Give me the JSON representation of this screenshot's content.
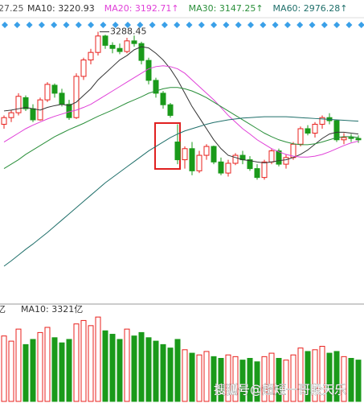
{
  "chart_data": {
    "type": "candlestick",
    "truncated_label": "27.25",
    "annotation": "3288.45",
    "watermark": "搜狐号@超短一哥段天乐",
    "ylim": [
      2680,
      3333
    ],
    "up_color": "#e8201c",
    "down_color": "#1a9a1a",
    "open": [
      3080,
      3095,
      3106,
      3140,
      3115,
      3090,
      3135,
      3168,
      3150,
      3125,
      3095,
      3188,
      3225,
      3242,
      3279,
      3258,
      3251,
      3244,
      3268,
      3262,
      3224,
      3179,
      3150,
      3124,
      3040,
      3000,
      3025,
      2975,
      3010,
      3030,
      2995,
      2970,
      2992,
      3010,
      3000,
      2980,
      2960,
      2995,
      3020,
      2990,
      3005,
      3035,
      3070,
      3060,
      3080,
      3095,
      3088,
      3045,
      3050,
      3048
    ],
    "high": [
      3100,
      3112,
      3150,
      3145,
      3125,
      3140,
      3175,
      3172,
      3160,
      3135,
      3195,
      3230,
      3250,
      3288.45,
      3282,
      3265,
      3262,
      3275,
      3280,
      3266,
      3230,
      3185,
      3155,
      3128,
      3080,
      3030,
      3040,
      3020,
      3035,
      3032,
      3005,
      3000,
      3015,
      3020,
      3008,
      2990,
      3000,
      3025,
      3025,
      3012,
      3040,
      3075,
      3078,
      3085,
      3100,
      3105,
      3090,
      3060,
      3058,
      3055
    ],
    "low": [
      3070,
      3085,
      3100,
      3110,
      3085,
      3088,
      3130,
      3140,
      3120,
      3090,
      3092,
      3180,
      3215,
      3235,
      3250,
      3240,
      3238,
      3240,
      3255,
      3215,
      3170,
      3140,
      3115,
      3095,
      2990,
      2980,
      2965,
      2970,
      3000,
      2990,
      2965,
      2962,
      2988,
      2990,
      2975,
      2955,
      2955,
      2990,
      2985,
      2980,
      3000,
      3030,
      3055,
      3050,
      3070,
      3080,
      3040,
      3035,
      3040,
      3038
    ],
    "close": [
      3095,
      3106,
      3143,
      3115,
      3090,
      3135,
      3170,
      3150,
      3125,
      3095,
      3188,
      3225,
      3242,
      3279,
      3258,
      3251,
      3244,
      3268,
      3262,
      3224,
      3179,
      3150,
      3124,
      3100,
      3000,
      3025,
      2975,
      3010,
      3030,
      2995,
      2970,
      2992,
      3010,
      3000,
      2980,
      2960,
      2995,
      3020,
      2990,
      3005,
      3035,
      3070,
      3060,
      3080,
      3095,
      3088,
      3045,
      3050,
      3048,
      3045
    ],
    "series": [
      {
        "name": "MA10: 3220.93",
        "color": "#333333",
        "values": [
          3110,
          3112,
          3115,
          3118,
          3115,
          3112,
          3118,
          3122,
          3125,
          3122,
          3130,
          3145,
          3160,
          3180,
          3195,
          3210,
          3225,
          3235,
          3248,
          3255,
          3252,
          3240,
          3225,
          3205,
          3180,
          3150,
          3120,
          3095,
          3070,
          3045,
          3025,
          3010,
          3005,
          3000,
          2998,
          2995,
          2993,
          2995,
          2998,
          3000,
          3005,
          3012,
          3022,
          3035,
          3048,
          3058,
          3062,
          3062,
          3060,
          3058
        ]
      },
      {
        "name": "MA20: 3192.71↑",
        "color": "#e040d8",
        "values": [
          3040,
          3050,
          3060,
          3070,
          3078,
          3085,
          3092,
          3098,
          3103,
          3108,
          3112,
          3118,
          3125,
          3135,
          3145,
          3155,
          3165,
          3175,
          3185,
          3195,
          3205,
          3210,
          3212,
          3210,
          3205,
          3195,
          3180,
          3165,
          3150,
          3135,
          3118,
          3100,
          3085,
          3070,
          3058,
          3045,
          3035,
          3025,
          3018,
          3012,
          3008,
          3006,
          3006,
          3008,
          3012,
          3018,
          3025,
          3032,
          3038,
          3042
        ]
      },
      {
        "name": "MA30: 3147.25↑",
        "color": "#2a8f3a",
        "values": [
          2980,
          2990,
          3000,
          3012,
          3022,
          3032,
          3042,
          3052,
          3060,
          3068,
          3075,
          3082,
          3090,
          3098,
          3105,
          3112,
          3120,
          3128,
          3135,
          3142,
          3150,
          3155,
          3160,
          3163,
          3163,
          3160,
          3155,
          3148,
          3140,
          3130,
          3120,
          3110,
          3100,
          3090,
          3080,
          3070,
          3060,
          3052,
          3045,
          3040,
          3036,
          3034,
          3034,
          3036,
          3040,
          3045,
          3050,
          3052,
          3052,
          3050
        ]
      },
      {
        "name": "MA60: 2976.28↑",
        "color": "#1f6f6a",
        "values": [
          2760,
          2772,
          2785,
          2798,
          2810,
          2823,
          2836,
          2850,
          2864,
          2878,
          2892,
          2906,
          2920,
          2934,
          2948,
          2960,
          2972,
          2984,
          2996,
          3008,
          3020,
          3030,
          3040,
          3050,
          3058,
          3065,
          3070,
          3075,
          3080,
          3084,
          3087,
          3090,
          3092,
          3094,
          3095,
          3096,
          3097,
          3097,
          3097,
          3097,
          3096,
          3095,
          3094,
          3093,
          3092,
          3091,
          3090,
          3089,
          3088,
          3087
        ]
      }
    ],
    "volume": {
      "unit_label": "亿",
      "ma_label": "MA10: 3321亿",
      "ylim": [
        0,
        5000
      ],
      "values": [
        3800,
        3500,
        4200,
        3300,
        3600,
        4000,
        4300,
        3700,
        3400,
        3600,
        4500,
        4700,
        4400,
        4900,
        4100,
        3900,
        3600,
        4200,
        3800,
        4000,
        3700,
        3500,
        3300,
        3100,
        3600,
        3000,
        2800,
        2700,
        2900,
        2600,
        2500,
        2700,
        2600,
        2400,
        2500,
        2300,
        2600,
        2800,
        2500,
        2400,
        2700,
        3100,
        2900,
        3000,
        3200,
        2800,
        2900,
        2600,
        2500,
        2400
      ]
    }
  }
}
